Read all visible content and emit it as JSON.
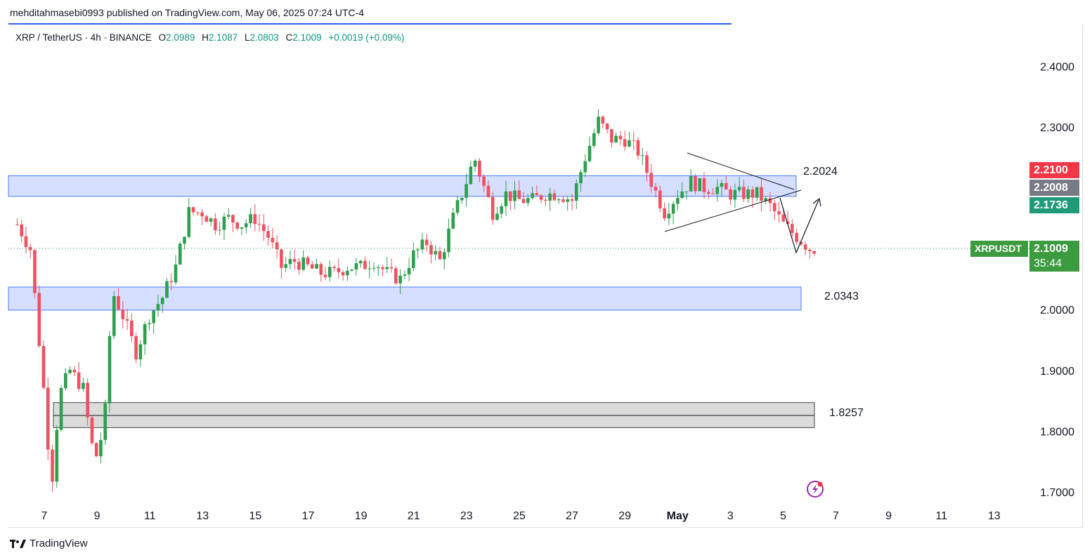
{
  "header": {
    "publisher": "mehditahmasebi0993 published on TradingView.com, May 06, 2025 07:24 UTC-4"
  },
  "legend": {
    "symbol": "XRP / TetherUS · 4h · BINANCE",
    "open_label": "O",
    "open": "2.0989",
    "high_label": "H",
    "high": "2.1087",
    "low_label": "L",
    "low": "2.0803",
    "close_label": "C",
    "close": "2.1009",
    "change": "+0.0019 (+0.09%)"
  },
  "footer": {
    "brand": "TradingView"
  },
  "colors": {
    "up": "#26a69a",
    "down": "#ef5350",
    "upBar": "#2e9e4f",
    "downBar": "#f05060",
    "zoneBlue": "#d1dcff",
    "zoneGray": "#d9d9d9"
  },
  "price_badges": {
    "red": "2.2100",
    "gray": "2.2008",
    "teal": "2.1736",
    "symbol": "XRPUSDT",
    "last": "2.1009",
    "countdown": "35:44"
  },
  "chart_data": {
    "type": "candlestick",
    "y_ticks": [
      "2.4000",
      "2.3000",
      "2.0000",
      "1.9000",
      "1.8000",
      "1.7000"
    ],
    "x_ticks": [
      "7",
      "9",
      "11",
      "13",
      "15",
      "17",
      "19",
      "21",
      "23",
      "25",
      "27",
      "29",
      "May",
      "3",
      "5",
      "7",
      "9",
      "11",
      "13"
    ],
    "ylim": [
      1.69,
      2.44
    ],
    "zones": [
      {
        "label": "2.2024",
        "from": 2.186,
        "to": 2.22,
        "color": "blue"
      },
      {
        "label": "2.0343",
        "from": 1.999,
        "to": 2.037,
        "color": "blue"
      },
      {
        "label": "1.8257",
        "from": 1.806,
        "to": 1.847,
        "mid": 1.826,
        "color": "gray"
      }
    ],
    "close_path": [
      [
        "Apr 6",
        2.14
      ],
      [
        "Apr 6.5",
        2.1
      ],
      [
        "Apr 7",
        1.87
      ],
      [
        "Apr 7.3",
        1.71
      ],
      [
        "Apr 7.6",
        1.86
      ],
      [
        "Apr 8",
        1.9
      ],
      [
        "Apr 8.5",
        1.87
      ],
      [
        "Apr 8.8",
        1.78
      ],
      [
        "Apr 9",
        1.76
      ],
      [
        "Apr 9.3",
        1.81
      ],
      [
        "Apr 9.6",
        2.03
      ],
      [
        "Apr 10",
        1.99
      ],
      [
        "Apr 10.5",
        1.93
      ],
      [
        "Apr 11",
        1.99
      ],
      [
        "Apr 11.5",
        2.02
      ],
      [
        "Apr 12",
        2.07
      ],
      [
        "Apr 12.5",
        2.16
      ],
      [
        "Apr 13",
        2.16
      ],
      [
        "Apr 13.5",
        2.14
      ],
      [
        "Apr 14",
        2.15
      ],
      [
        "Apr 14.5",
        2.14
      ],
      [
        "Apr 15",
        2.15
      ],
      [
        "Apr 15.5",
        2.12
      ],
      [
        "Apr 16",
        2.07
      ],
      [
        "Apr 16.5",
        2.08
      ],
      [
        "Apr 17",
        2.07
      ],
      [
        "Apr 17.5",
        2.06
      ],
      [
        "Apr 18",
        2.06
      ],
      [
        "Apr 18.5",
        2.07
      ],
      [
        "Apr 19",
        2.07
      ],
      [
        "Apr 19.5",
        2.08
      ],
      [
        "Apr 20",
        2.06
      ],
      [
        "Apr 20.5",
        2.05
      ],
      [
        "Apr 21",
        2.09
      ],
      [
        "Apr 21.5",
        2.11
      ],
      [
        "Apr 22",
        2.08
      ],
      [
        "Apr 22.5",
        2.15
      ],
      [
        "Apr 23",
        2.21
      ],
      [
        "Apr 23.3",
        2.25
      ],
      [
        "Apr 23.6",
        2.21
      ],
      [
        "Apr 24",
        2.16
      ],
      [
        "Apr 24.5",
        2.19
      ],
      [
        "Apr 25",
        2.18
      ],
      [
        "Apr 25.5",
        2.18
      ],
      [
        "Apr 26",
        2.19
      ],
      [
        "Apr 26.5",
        2.19
      ],
      [
        "Apr 27",
        2.18
      ],
      [
        "Apr 27.5",
        2.25
      ],
      [
        "Apr 28",
        2.31
      ],
      [
        "Apr 28.5",
        2.28
      ],
      [
        "Apr 29",
        2.28
      ],
      [
        "Apr 29.5",
        2.26
      ],
      [
        "Apr 30",
        2.21
      ],
      [
        "Apr 30.5",
        2.16
      ],
      [
        "May 1",
        2.19
      ],
      [
        "May 1.5",
        2.21
      ],
      [
        "May 2",
        2.2
      ],
      [
        "May 2.5",
        2.2
      ],
      [
        "May 3",
        2.19
      ],
      [
        "May 3.5",
        2.19
      ],
      [
        "May 4",
        2.19
      ],
      [
        "May 4.5",
        2.17
      ],
      [
        "May 5",
        2.14
      ],
      [
        "May 5.5",
        2.12
      ],
      [
        "May 6",
        2.1
      ]
    ]
  }
}
